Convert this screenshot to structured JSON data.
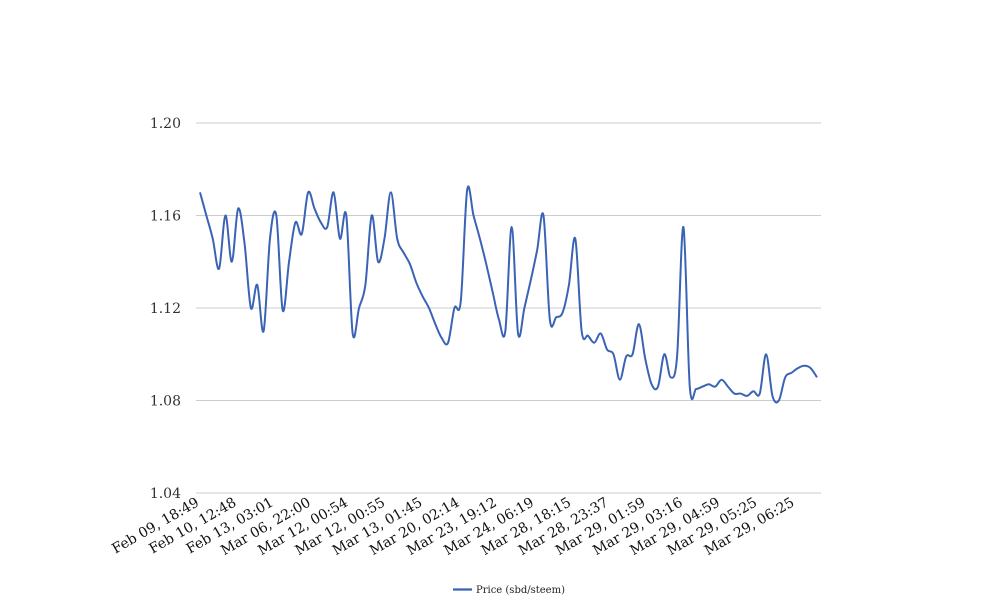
{
  "chart_data": {
    "type": "line",
    "title": "",
    "xlabel": "",
    "ylabel": "",
    "ylim": [
      1.04,
      1.2
    ],
    "yticks": [
      "1.04",
      "1.08",
      "1.12",
      "1.16",
      "1.20"
    ],
    "grid": true,
    "legend": "bottom-center",
    "x_tick_labels": [
      "Feb 09, 18:49",
      "Feb 10, 12:48",
      "Feb 13, 03:01",
      "Mar 06, 22:00",
      "Mar 12, 00:54",
      "Mar 12, 00:55",
      "Mar 13, 01:45",
      "Mar 20, 02:14",
      "Mar 23, 19:12",
      "Mar 24, 06:19",
      "Mar 28, 18:15",
      "Mar 28, 23:37",
      "Mar 29, 01:59",
      "Mar 29, 03:16",
      "Mar 29, 04:59",
      "Mar 29, 05:25",
      "Mar 29, 06:25"
    ],
    "series": [
      {
        "name": "Price (sbd/steem)",
        "color": "#3b63b5",
        "values": [
          1.17,
          1.16,
          1.15,
          1.137,
          1.16,
          1.14,
          1.163,
          1.148,
          1.12,
          1.13,
          1.11,
          1.15,
          1.16,
          1.119,
          1.14,
          1.157,
          1.152,
          1.17,
          1.163,
          1.157,
          1.155,
          1.17,
          1.15,
          1.16,
          1.109,
          1.12,
          1.13,
          1.16,
          1.14,
          1.15,
          1.17,
          1.15,
          1.144,
          1.139,
          1.131,
          1.125,
          1.12,
          1.113,
          1.107,
          1.105,
          1.12,
          1.123,
          1.171,
          1.16,
          1.15,
          1.139,
          1.127,
          1.115,
          1.11,
          1.155,
          1.109,
          1.12,
          1.132,
          1.145,
          1.16,
          1.115,
          1.116,
          1.118,
          1.13,
          1.15,
          1.11,
          1.108,
          1.105,
          1.109,
          1.102,
          1.1,
          1.089,
          1.099,
          1.1,
          1.113,
          1.098,
          1.087,
          1.086,
          1.1,
          1.09,
          1.099,
          1.155,
          1.086,
          1.085,
          1.086,
          1.087,
          1.086,
          1.089,
          1.086,
          1.083,
          1.083,
          1.082,
          1.084,
          1.083,
          1.1,
          1.082,
          1.08,
          1.09,
          1.092,
          1.094,
          1.095,
          1.094,
          1.09
        ]
      }
    ]
  }
}
